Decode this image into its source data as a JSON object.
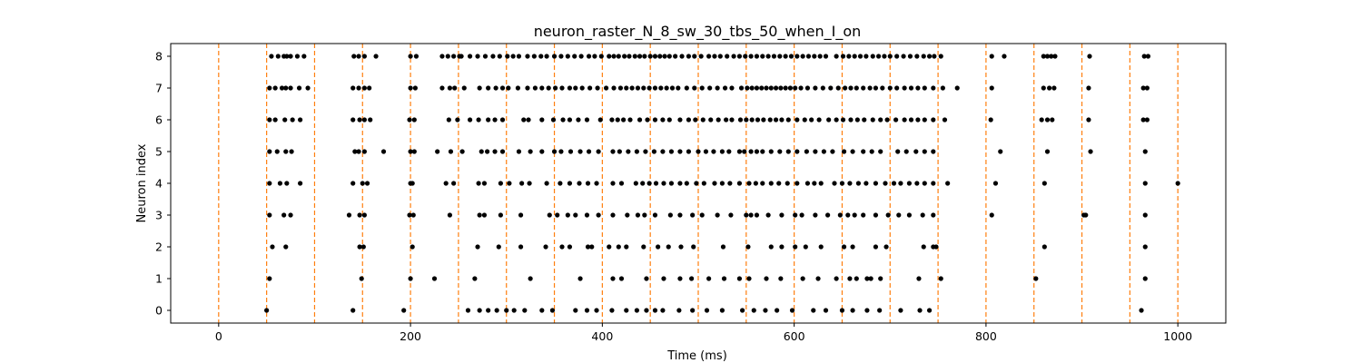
{
  "chart_data": {
    "type": "scatter",
    "title": "neuron_raster_N_8_sw_30_tbs_50_when_I_on",
    "xlabel": "Time (ms)",
    "ylabel": "Neuron index",
    "xlim": [
      -50,
      1050
    ],
    "ylim": [
      -0.4,
      8.4
    ],
    "xticks": [
      0,
      200,
      400,
      600,
      800,
      1000
    ],
    "xtick_labels": [
      "0",
      "200",
      "400",
      "600",
      "800",
      "1000"
    ],
    "yticks": [
      0,
      1,
      2,
      3,
      4,
      5,
      6,
      7,
      8
    ],
    "ytick_labels": [
      "0",
      "1",
      "2",
      "3",
      "4",
      "5",
      "6",
      "7",
      "8"
    ],
    "grid": false,
    "marker_color": "#000000",
    "vline_color": "#ff7f0e",
    "vlines_ms": [
      0,
      50,
      100,
      150,
      200,
      250,
      300,
      350,
      400,
      450,
      500,
      550,
      600,
      650,
      700,
      750,
      800,
      850,
      900,
      950,
      1000
    ],
    "series": [
      {
        "neuron": 0,
        "times": [
          50,
          140,
          193,
          260,
          272,
          281,
          290,
          300,
          308,
          319,
          337,
          348,
          372,
          384,
          394,
          410,
          425,
          436,
          446,
          455,
          463,
          480,
          494,
          509,
          525,
          546,
          558,
          570,
          582,
          598,
          620,
          633,
          650,
          661,
          676,
          689,
          711,
          731,
          741,
          962
        ]
      },
      {
        "neuron": 1,
        "times": [
          53,
          149,
          200,
          225,
          267,
          325,
          377,
          411,
          420,
          446,
          464,
          481,
          493,
          511,
          527,
          543,
          553,
          571,
          586,
          609,
          625,
          644,
          658,
          665,
          676,
          680,
          690,
          730,
          753,
          852,
          966
        ]
      },
      {
        "neuron": 2,
        "times": [
          56,
          70,
          147,
          151,
          202,
          270,
          292,
          315,
          341,
          358,
          366,
          385,
          389,
          407,
          417,
          425,
          443,
          458,
          469,
          482,
          495,
          526,
          552,
          576,
          587,
          601,
          612,
          628,
          652,
          661,
          685,
          696,
          735,
          745,
          748,
          861,
          966
        ]
      },
      {
        "neuron": 3,
        "times": [
          53,
          68,
          75,
          136,
          147,
          152,
          199,
          203,
          241,
          272,
          277,
          294,
          315,
          345,
          353,
          364,
          372,
          384,
          396,
          411,
          426,
          437,
          444,
          455,
          471,
          481,
          494,
          504,
          520,
          534,
          550,
          555,
          561,
          573,
          587,
          601,
          608,
          622,
          635,
          648,
          656,
          663,
          672,
          685,
          698,
          709,
          720,
          734,
          745,
          806,
          902,
          904,
          966
        ]
      },
      {
        "neuron": 4,
        "times": [
          53,
          64,
          71,
          85,
          140,
          150,
          155,
          200,
          202,
          237,
          245,
          271,
          277,
          294,
          303,
          316,
          324,
          342,
          356,
          366,
          376,
          385,
          394,
          411,
          420,
          435,
          442,
          449,
          456,
          464,
          472,
          481,
          488,
          498,
          506,
          517,
          525,
          533,
          543,
          553,
          560,
          567,
          576,
          584,
          593,
          603,
          614,
          621,
          628,
          642,
          650,
          658,
          667,
          675,
          685,
          695,
          704,
          711,
          720,
          728,
          736,
          745,
          760,
          810,
          861,
          966,
          1000
        ]
      },
      {
        "neuron": 5,
        "times": [
          53,
          61,
          70,
          76,
          142,
          146,
          152,
          172,
          200,
          204,
          228,
          242,
          254,
          274,
          280,
          288,
          296,
          313,
          325,
          337,
          350,
          357,
          367,
          377,
          386,
          396,
          411,
          418,
          427,
          436,
          445,
          454,
          463,
          472,
          481,
          490,
          500,
          508,
          516,
          525,
          532,
          543,
          548,
          555,
          561,
          567,
          576,
          585,
          594,
          603,
          613,
          622,
          631,
          640,
          652,
          661,
          672,
          681,
          690,
          708,
          717,
          727,
          736,
          745,
          815,
          864,
          909,
          966
        ]
      },
      {
        "neuron": 6,
        "times": [
          53,
          59,
          69,
          77,
          85,
          140,
          147,
          152,
          158,
          199,
          204,
          240,
          249,
          262,
          271,
          281,
          288,
          296,
          318,
          323,
          337,
          349,
          359,
          366,
          375,
          384,
          398,
          410,
          416,
          422,
          429,
          439,
          447,
          455,
          463,
          470,
          481,
          490,
          497,
          505,
          513,
          521,
          529,
          535,
          544,
          550,
          556,
          562,
          568,
          575,
          581,
          587,
          594,
          603,
          611,
          618,
          626,
          636,
          644,
          651,
          659,
          666,
          673,
          682,
          690,
          697,
          706,
          715,
          722,
          729,
          736,
          745,
          757,
          805,
          858,
          864,
          869,
          907,
          964,
          968
        ]
      },
      {
        "neuron": 7,
        "times": [
          53,
          59,
          66,
          70,
          75,
          84,
          93,
          140,
          146,
          152,
          157,
          200,
          205,
          233,
          241,
          246,
          256,
          272,
          281,
          289,
          296,
          302,
          312,
          322,
          330,
          337,
          344,
          351,
          358,
          366,
          372,
          379,
          387,
          395,
          404,
          412,
          419,
          425,
          431,
          437,
          443,
          449,
          455,
          461,
          467,
          473,
          479,
          488,
          496,
          504,
          512,
          520,
          528,
          535,
          545,
          551,
          556,
          561,
          566,
          571,
          576,
          581,
          586,
          591,
          596,
          601,
          607,
          614,
          622,
          630,
          638,
          646,
          653,
          659,
          665,
          672,
          679,
          685,
          692,
          700,
          707,
          715,
          722,
          729,
          736,
          745,
          755,
          770,
          806,
          860,
          866,
          871,
          907,
          964,
          968
        ]
      },
      {
        "neuron": 8,
        "times": [
          55,
          62,
          68,
          71,
          75,
          82,
          89,
          141,
          146,
          152,
          164,
          200,
          206,
          233,
          239,
          245,
          251,
          253,
          262,
          270,
          278,
          286,
          293,
          301,
          307,
          313,
          322,
          329,
          336,
          342,
          350,
          357,
          364,
          371,
          378,
          386,
          392,
          399,
          407,
          412,
          417,
          423,
          428,
          434,
          439,
          444,
          450,
          455,
          460,
          465,
          470,
          476,
          483,
          490,
          496,
          503,
          511,
          517,
          523,
          530,
          537,
          543,
          549,
          555,
          561,
          567,
          573,
          579,
          585,
          591,
          597,
          603,
          609,
          615,
          621,
          627,
          633,
          644,
          651,
          657,
          663,
          669,
          675,
          682,
          688,
          694,
          700,
          707,
          714,
          721,
          728,
          735,
          741,
          746,
          753,
          806,
          819,
          860,
          864,
          868,
          872,
          908,
          965,
          969
        ]
      }
    ]
  }
}
